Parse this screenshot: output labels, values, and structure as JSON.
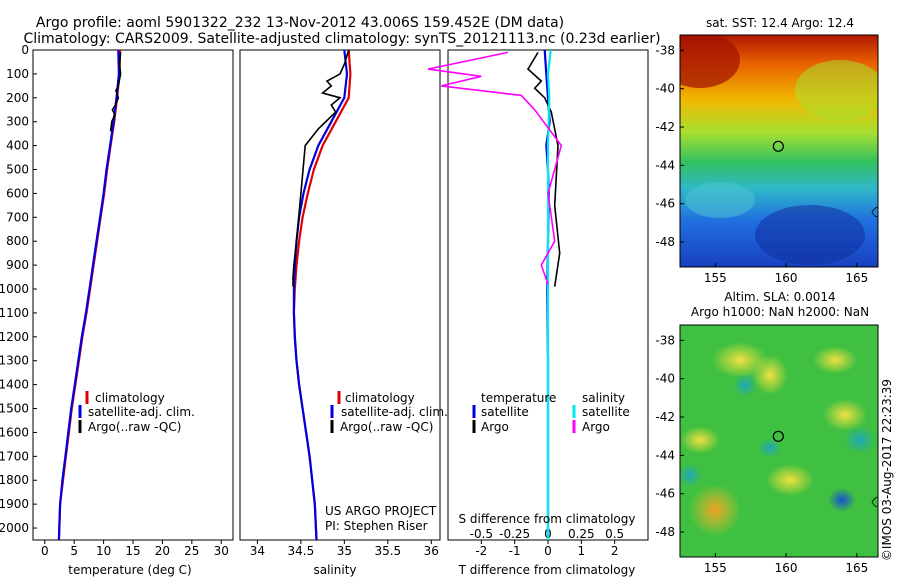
{
  "title": {
    "line1": "Argo profile: aoml 5901322_232 13-Nov-2012 43.006S 159.452E (DM data)",
    "line2": "Climatology: CARS2009. Satellite-adjusted climatology: synTS_20121113.nc (0.23d earlier)"
  },
  "colors": {
    "climatology": "#e00000",
    "satellite": "#0000e0",
    "argo": "#000000",
    "sal_satellite": "#00e8f0",
    "sal_argo": "#ff00ff"
  },
  "chart_data": [
    {
      "type": "line",
      "xlabel": "temperature (deg C)",
      "xticks": [
        "0",
        "5",
        "10",
        "15",
        "20",
        "25",
        "30"
      ],
      "xlim": [
        -2,
        32
      ],
      "ylim": [
        2050,
        0
      ],
      "yticks": [
        "0",
        "100",
        "200",
        "300",
        "400",
        "500",
        "600",
        "700",
        "800",
        "900",
        "1000",
        "1100",
        "1200",
        "1300",
        "1400",
        "1500",
        "1600",
        "1700",
        "1800",
        "1900",
        "2000"
      ],
      "legend": [
        "climatology",
        "satellite-adj. clim.",
        "Argo(..raw -QC)"
      ],
      "series": [
        {
          "name": "climatology",
          "color": "#e00000",
          "x": [
            12.8,
            12.7,
            12.3,
            11.8,
            11.2,
            10.6,
            10.1,
            9.5,
            8.9,
            8.3,
            7.7,
            7.1,
            6.4,
            5.8,
            5.2,
            4.6,
            4.1,
            3.6,
            3.1,
            2.6,
            2.4
          ],
          "y": [
            0,
            100,
            200,
            300,
            400,
            500,
            600,
            700,
            800,
            900,
            1000,
            1100,
            1200,
            1300,
            1400,
            1500,
            1600,
            1700,
            1800,
            1900,
            2050
          ]
        },
        {
          "name": "satellite-adj. clim.",
          "color": "#0000e0",
          "x": [
            12.5,
            12.6,
            12.2,
            11.7,
            11.1,
            10.5,
            10.0,
            9.4,
            8.8,
            8.2,
            7.6,
            7.0,
            6.3,
            5.7,
            5.1,
            4.5,
            4.0,
            3.5,
            3.0,
            2.6,
            2.4
          ],
          "y": [
            0,
            100,
            200,
            300,
            400,
            500,
            600,
            700,
            800,
            900,
            1000,
            1100,
            1200,
            1300,
            1400,
            1500,
            1600,
            1700,
            1800,
            1900,
            2050
          ]
        },
        {
          "name": "Argo(..raw -QC)",
          "color": "#000000",
          "x": [
            12.9,
            12.7,
            12.9,
            12.5,
            12.1,
            12.5,
            12.0,
            11.5,
            11.9,
            11.4,
            11.2
          ],
          "y": [
            10,
            60,
            100,
            150,
            170,
            200,
            230,
            250,
            270,
            300,
            340
          ]
        }
      ]
    },
    {
      "type": "line",
      "xlabel": "salinity",
      "xticks": [
        "34",
        "34.5",
        "35",
        "35.5",
        "36"
      ],
      "xlim": [
        33.8,
        36.1
      ],
      "ylim": [
        2050,
        0
      ],
      "legend": [
        "climatology",
        "satellite-adj. clim.",
        "Argo(..raw -QC)"
      ],
      "annotation": [
        "US ARGO PROJECT",
        "PI: Stephen Riser"
      ],
      "series": [
        {
          "name": "climatology",
          "color": "#e00000",
          "x": [
            35.05,
            35.07,
            35.05,
            34.9,
            34.75,
            34.65,
            34.58,
            34.52,
            34.48,
            34.45,
            34.43,
            34.42,
            34.43,
            34.45,
            34.48,
            34.52,
            34.56,
            34.6,
            34.63,
            34.66,
            34.68
          ],
          "y": [
            0,
            100,
            200,
            300,
            400,
            500,
            600,
            700,
            800,
            900,
            1000,
            1100,
            1200,
            1300,
            1400,
            1500,
            1600,
            1700,
            1800,
            1900,
            2050
          ]
        },
        {
          "name": "satellite-adj. clim.",
          "color": "#0000e0",
          "x": [
            35.0,
            35.03,
            35.0,
            34.85,
            34.7,
            34.6,
            34.53,
            34.48,
            34.45,
            34.43,
            34.42,
            34.42,
            34.43,
            34.45,
            34.48,
            34.52,
            34.56,
            34.6,
            34.63,
            34.66,
            34.68
          ],
          "y": [
            0,
            100,
            200,
            300,
            400,
            500,
            600,
            700,
            800,
            900,
            1000,
            1100,
            1200,
            1300,
            1400,
            1500,
            1600,
            1700,
            1800,
            1900,
            2050
          ]
        },
        {
          "name": "Argo(..raw -QC)",
          "color": "#000000",
          "x": [
            35.05,
            35.0,
            34.95,
            34.8,
            34.85,
            34.75,
            34.95,
            34.85,
            34.9,
            34.7,
            34.55,
            34.5,
            34.45,
            34.42,
            34.41,
            34.41
          ],
          "y": [
            0,
            60,
            100,
            130,
            150,
            180,
            200,
            230,
            260,
            330,
            400,
            600,
            800,
            900,
            950,
            990
          ]
        }
      ]
    },
    {
      "type": "line",
      "xlabel": "T difference from climatology",
      "xticks": [
        "-2",
        "-1",
        "0",
        "1",
        "2"
      ],
      "xlim": [
        -3,
        3
      ],
      "x2label": "S difference from climatology",
      "x2ticks": [
        "-0.5",
        "-0.25",
        "0",
        "0.25",
        "0.5"
      ],
      "ylim": [
        2050,
        0
      ],
      "legend_left_title": "temperature",
      "legend_left": [
        "satellite",
        "Argo"
      ],
      "legend_right_title": "salinity",
      "legend_right": [
        "satellite",
        "Argo"
      ],
      "series": [
        {
          "name": "temperature satellite",
          "color": "#0000e0",
          "x": [
            -0.1,
            -0.05,
            0.0,
            0.05,
            -0.05,
            0.0,
            0.02,
            0.0,
            -0.02,
            0.0,
            0.0,
            0.0
          ],
          "y": [
            0,
            100,
            200,
            300,
            400,
            500,
            600,
            800,
            1000,
            1300,
            1700,
            2050
          ]
        },
        {
          "name": "temperature Argo",
          "color": "#000000",
          "x": [
            -0.3,
            -0.6,
            -0.2,
            -0.4,
            -0.1,
            0.1,
            0.3,
            0.2,
            0.35,
            0.2
          ],
          "y": [
            10,
            80,
            130,
            160,
            200,
            260,
            400,
            650,
            850,
            990
          ]
        },
        {
          "name": "salinity satellite",
          "color": "#00e8f0",
          "x": [
            0.02,
            0.0,
            0.01,
            0.0,
            0.0,
            0.0,
            0.0,
            0.0
          ],
          "y": [
            0,
            100,
            200,
            400,
            700,
            1000,
            1500,
            2050
          ]
        },
        {
          "name": "salinity Argo",
          "color": "#ff00ff",
          "x": [
            -0.3,
            -0.9,
            -0.5,
            -0.8,
            -0.2,
            -0.1,
            0.1,
            0.0,
            0.05,
            -0.05,
            0.0
          ],
          "y": [
            10,
            80,
            110,
            150,
            190,
            250,
            400,
            600,
            800,
            900,
            980
          ]
        }
      ]
    },
    {
      "type": "heatmap",
      "title": "sat. SST: 12.4  Argo: 12.4",
      "xticks": [
        "155",
        "160",
        "165"
      ],
      "yticks": [
        "-38",
        "-40",
        "-42",
        "-44",
        "-46",
        "-48"
      ],
      "xlim": [
        152.5,
        166.5
      ],
      "ylim": [
        -49.3,
        -37.2
      ],
      "marker": {
        "lon": 159.452,
        "lat": -43.006
      }
    },
    {
      "type": "heatmap",
      "title_line1": "Altim. SLA: 0.0014",
      "title_line2": "Argo h1000: NaN h2000: NaN",
      "xticks": [
        "155",
        "160",
        "165"
      ],
      "yticks": [
        "-38",
        "-40",
        "-42",
        "-44",
        "-46",
        "-48"
      ],
      "xlim": [
        152.5,
        166.5
      ],
      "ylim": [
        -49.3,
        -37.2
      ],
      "marker": {
        "lon": 159.452,
        "lat": -43.006
      },
      "side_label": "©IMOS 03-Aug-2017 22:23:39"
    }
  ]
}
